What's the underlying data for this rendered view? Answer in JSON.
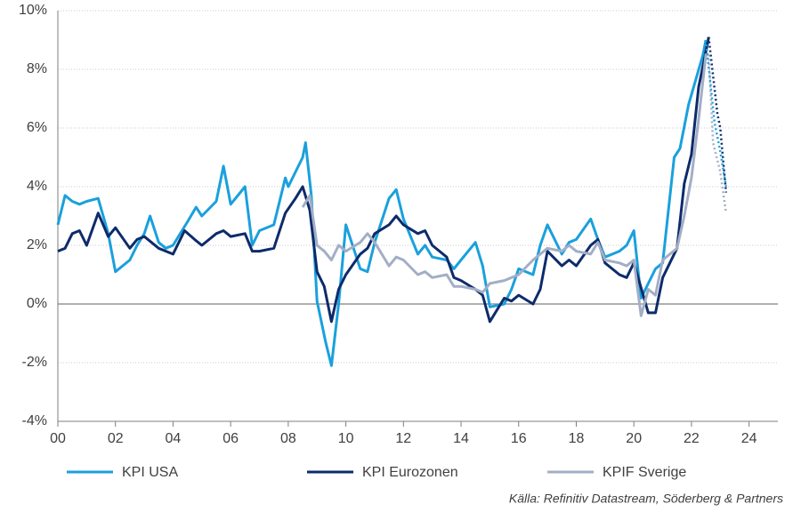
{
  "chart_data": {
    "type": "line",
    "xlim": [
      0,
      25
    ],
    "ylim": [
      -4,
      10
    ],
    "xticks": [
      {
        "value": 0,
        "label": "00"
      },
      {
        "value": 2,
        "label": "02"
      },
      {
        "value": 4,
        "label": "04"
      },
      {
        "value": 6,
        "label": "06"
      },
      {
        "value": 8,
        "label": "08"
      },
      10,
      12,
      14,
      16,
      18,
      20,
      22,
      24
    ],
    "yticks": [
      {
        "value": -4,
        "label": "-4%"
      },
      {
        "value": -2,
        "label": "-2%"
      },
      {
        "value": 0,
        "label": "0%"
      },
      {
        "value": 2,
        "label": "2%"
      },
      {
        "value": 4,
        "label": "4%"
      },
      {
        "value": 6,
        "label": "6%"
      },
      {
        "value": 8,
        "label": "8%"
      },
      {
        "value": 10,
        "label": "10%"
      }
    ],
    "grid": true,
    "legend": "bottom",
    "source": "Källa: Refinitiv Datastream, Söderberg & Partners",
    "series": [
      {
        "name": "KPI USA",
        "color": "#1aa0dc",
        "x": [
          0,
          0.25,
          0.5,
          0.75,
          1,
          1.4,
          1.75,
          2,
          2.5,
          2.75,
          3,
          3.2,
          3.5,
          3.75,
          4,
          4.5,
          4.8,
          5,
          5.5,
          5.75,
          6,
          6.5,
          6.75,
          7,
          7.5,
          7.9,
          8,
          8.5,
          8.6,
          8.8,
          9,
          9.3,
          9.5,
          9.75,
          10,
          10.5,
          10.75,
          11,
          11.5,
          11.75,
          12,
          12.5,
          12.75,
          13,
          13.5,
          13.75,
          14,
          14.5,
          14.75,
          15,
          15.5,
          15.75,
          16,
          16.5,
          16.75,
          17,
          17.5,
          17.75,
          18,
          18.5,
          18.75,
          19,
          19.5,
          19.75,
          20,
          20.25,
          20.75,
          21,
          21.4,
          21.6,
          21.9,
          22.4,
          22.5
        ],
        "values": [
          2.7,
          3.7,
          3.5,
          3.4,
          3.5,
          3.6,
          2.4,
          1.1,
          1.5,
          2.0,
          2.4,
          3.0,
          2.1,
          1.9,
          2.0,
          2.8,
          3.3,
          3.0,
          3.5,
          4.7,
          3.4,
          4.0,
          2.0,
          2.5,
          2.7,
          4.3,
          4.0,
          5.0,
          5.5,
          3.7,
          0.1,
          -1.3,
          -2.1,
          0.0,
          2.7,
          1.2,
          1.1,
          2.1,
          3.6,
          3.9,
          2.9,
          1.7,
          2.0,
          1.6,
          1.5,
          1.2,
          1.5,
          2.1,
          1.3,
          -0.1,
          0.0,
          0.5,
          1.2,
          1.0,
          2.0,
          2.7,
          1.7,
          2.1,
          2.2,
          2.9,
          2.2,
          1.6,
          1.8,
          2.0,
          2.5,
          0.2,
          1.2,
          1.4,
          5.0,
          5.3,
          6.8,
          8.5,
          9.0
        ],
        "forecast": {
          "x": [
            22.5,
            22.8,
            23,
            23.2
          ],
          "values": [
            9.0,
            6.2,
            5.2,
            4.0
          ]
        }
      },
      {
        "name": "KPI Eurozonen",
        "color": "#0d2b6b",
        "x": [
          0,
          0.25,
          0.5,
          0.75,
          1,
          1.4,
          1.75,
          2,
          2.5,
          2.75,
          3,
          3.5,
          4,
          4.4,
          4.75,
          5,
          5.5,
          5.75,
          6,
          6.5,
          6.75,
          7,
          7.5,
          7.9,
          8.25,
          8.5,
          8.75,
          9,
          9.25,
          9.5,
          9.75,
          10,
          10.5,
          10.75,
          11,
          11.5,
          11.75,
          12,
          12.5,
          12.75,
          13,
          13.5,
          13.75,
          14,
          14.5,
          14.75,
          15,
          15.5,
          15.75,
          16,
          16.5,
          16.75,
          17,
          17.5,
          17.75,
          18,
          18.5,
          18.75,
          19,
          19.5,
          19.75,
          20,
          20.5,
          20.75,
          21,
          21.5,
          21.75,
          22,
          22.25,
          22.5,
          22.6
        ],
        "values": [
          1.8,
          1.9,
          2.4,
          2.5,
          2.0,
          3.1,
          2.3,
          2.6,
          1.9,
          2.2,
          2.3,
          1.9,
          1.7,
          2.5,
          2.2,
          2.0,
          2.4,
          2.5,
          2.3,
          2.4,
          1.8,
          1.8,
          1.9,
          3.1,
          3.6,
          4.0,
          3.2,
          1.1,
          0.6,
          -0.6,
          0.5,
          1.0,
          1.7,
          1.9,
          2.4,
          2.7,
          3.0,
          2.7,
          2.4,
          2.5,
          2.0,
          1.6,
          0.9,
          0.8,
          0.5,
          0.3,
          -0.6,
          0.2,
          0.1,
          0.3,
          0.0,
          0.5,
          1.8,
          1.3,
          1.5,
          1.3,
          2.0,
          2.2,
          1.4,
          1.0,
          0.9,
          1.4,
          -0.3,
          -0.3,
          0.9,
          1.9,
          4.1,
          5.1,
          7.4,
          8.6,
          9.1
        ],
        "forecast": {
          "x": [
            22.6,
            22.9,
            23,
            23.2
          ],
          "values": [
            9.1,
            6.5,
            6.0,
            3.8
          ]
        }
      },
      {
        "name": "KPIF Sverige",
        "color": "#a3aec6",
        "x": [
          8.5,
          8.75,
          9,
          9.25,
          9.5,
          9.75,
          10,
          10.5,
          10.75,
          11,
          11.5,
          11.75,
          12,
          12.5,
          12.75,
          13,
          13.5,
          13.75,
          14,
          14.5,
          14.75,
          15,
          15.5,
          15.75,
          16,
          16.5,
          16.75,
          17,
          17.5,
          17.75,
          18,
          18.5,
          18.75,
          19,
          19.5,
          19.75,
          20,
          20.25,
          20.5,
          20.75,
          21,
          21.5,
          21.75,
          22,
          22.25,
          22.5,
          22.6
        ],
        "values": [
          3.3,
          3.7,
          2.0,
          1.8,
          1.5,
          2.0,
          1.8,
          2.1,
          2.4,
          2.1,
          1.3,
          1.6,
          1.5,
          1.0,
          1.1,
          0.9,
          1.0,
          0.6,
          0.6,
          0.5,
          0.4,
          0.7,
          0.8,
          0.9,
          1.0,
          1.5,
          1.7,
          1.9,
          1.8,
          2.0,
          1.8,
          1.7,
          2.1,
          1.5,
          1.4,
          1.3,
          1.5,
          -0.4,
          0.5,
          0.3,
          1.5,
          1.9,
          3.0,
          4.3,
          6.3,
          8.5,
          8.5
        ],
        "forecast": {
          "x": [
            22.6,
            22.75,
            23,
            23.2
          ],
          "values": [
            8.5,
            5.5,
            4.5,
            3.1
          ]
        }
      }
    ]
  }
}
